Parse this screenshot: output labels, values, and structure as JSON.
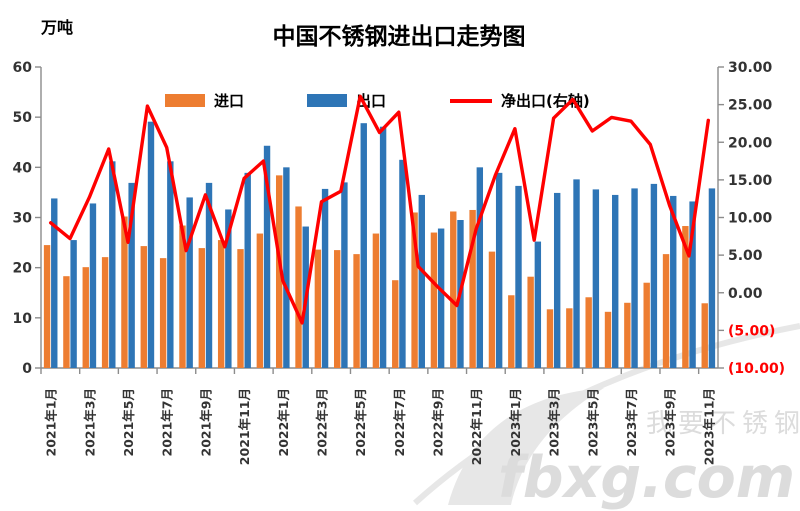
{
  "title": "中国不锈钢进出口走势图",
  "left_axis": {
    "unit": "万吨",
    "min": 0,
    "max": 60,
    "step": 10,
    "tick_labels": [
      "60",
      "50",
      "40",
      "30",
      "20",
      "10",
      "0"
    ]
  },
  "right_axis": {
    "min": -10,
    "max": 30,
    "step": 5,
    "tick_labels": [
      "30.00",
      "25.00",
      "20.00",
      "15.00",
      "10.00",
      "5.00",
      "0.00",
      "(5.00)",
      "(10.00)"
    ],
    "negative_label_color": "#FF0000",
    "positive_label_color": "#333333"
  },
  "legend": [
    {
      "label": "进口",
      "type": "bar",
      "color": "#ED7D31"
    },
    {
      "label": "出口",
      "type": "bar",
      "color": "#2E75B6"
    },
    {
      "label": "净出口(右轴)",
      "type": "line",
      "color": "#FF0000"
    }
  ],
  "watermark": {
    "text_cn": "我要不锈钢",
    "text_en": "fbxg.com",
    "color": "#DCDCDC"
  },
  "chart_data": {
    "type": "bar+line",
    "title": "中国不锈钢进出口走势图",
    "ylabel_left": "万吨",
    "left_ylim": [
      0,
      60
    ],
    "right_ylim": [
      -10,
      30
    ],
    "grid": false,
    "legend_position": "top",
    "categories": [
      "2021年1月",
      "2021年2月",
      "2021年3月",
      "2021年4月",
      "2021年5月",
      "2021年6月",
      "2021年7月",
      "2021年8月",
      "2021年9月",
      "2021年10月",
      "2021年11月",
      "2021年12月",
      "2022年1月",
      "2022年2月",
      "2022年3月",
      "2022年4月",
      "2022年5月",
      "2022年6月",
      "2022年7月",
      "2022年8月",
      "2022年9月",
      "2022年10月",
      "2022年11月",
      "2022年12月",
      "2023年1月",
      "2023年2月",
      "2023年3月",
      "2023年4月",
      "2023年5月",
      "2023年6月",
      "2023年7月",
      "2023年8月",
      "2023年9月",
      "2023年10月",
      "2023年11月"
    ],
    "x_tick_labels": [
      "2021年1月",
      "2021年3月",
      "2021年5月",
      "2021年7月",
      "2021年9月",
      "2021年11月",
      "2022年1月",
      "2022年3月",
      "2022年5月",
      "2022年7月",
      "2022年9月",
      "2022年11月",
      "2023年1月",
      "2023年3月",
      "2023年5月",
      "2023年7月",
      "2023年9月",
      "2023年11月"
    ],
    "x_label_interval": 2,
    "series": [
      {
        "name": "进口",
        "type": "bar",
        "axis": "left",
        "color": "#ED7D31",
        "values": [
          24.5,
          18.3,
          20.1,
          22.1,
          30.2,
          24.3,
          21.9,
          28.4,
          23.9,
          25.5,
          23.7,
          26.8,
          38.4,
          32.2,
          23.6,
          23.5,
          22.7,
          26.8,
          17.5,
          31.0,
          27.0,
          31.2,
          31.5,
          23.2,
          14.5,
          18.2,
          11.7,
          11.9,
          14.1,
          11.2,
          13.0,
          17.0,
          22.7,
          28.3,
          12.9
        ]
      },
      {
        "name": "出口",
        "type": "bar",
        "axis": "left",
        "color": "#2E75B6",
        "values": [
          33.8,
          25.5,
          32.8,
          41.2,
          36.9,
          49.1,
          41.2,
          34.0,
          36.9,
          31.6,
          38.9,
          44.3,
          40.0,
          28.2,
          35.7,
          37.0,
          48.8,
          48.1,
          41.5,
          34.5,
          27.8,
          29.5,
          40.0,
          38.9,
          36.3,
          25.2,
          34.9,
          37.6,
          35.6,
          34.5,
          35.8,
          36.7,
          34.3,
          33.2,
          35.8
        ]
      },
      {
        "name": "净出口(右轴)",
        "type": "line",
        "axis": "right",
        "color": "#FF0000",
        "values": [
          9.3,
          7.2,
          12.7,
          19.1,
          6.7,
          24.8,
          19.3,
          5.6,
          13.0,
          6.1,
          15.2,
          17.5,
          1.6,
          -4.0,
          12.1,
          13.5,
          26.1,
          21.3,
          24.0,
          3.5,
          0.8,
          -1.7,
          8.5,
          15.7,
          21.8,
          7.0,
          23.2,
          25.7,
          21.5,
          23.3,
          22.8,
          19.7,
          11.6,
          4.9,
          22.9
        ]
      }
    ]
  }
}
